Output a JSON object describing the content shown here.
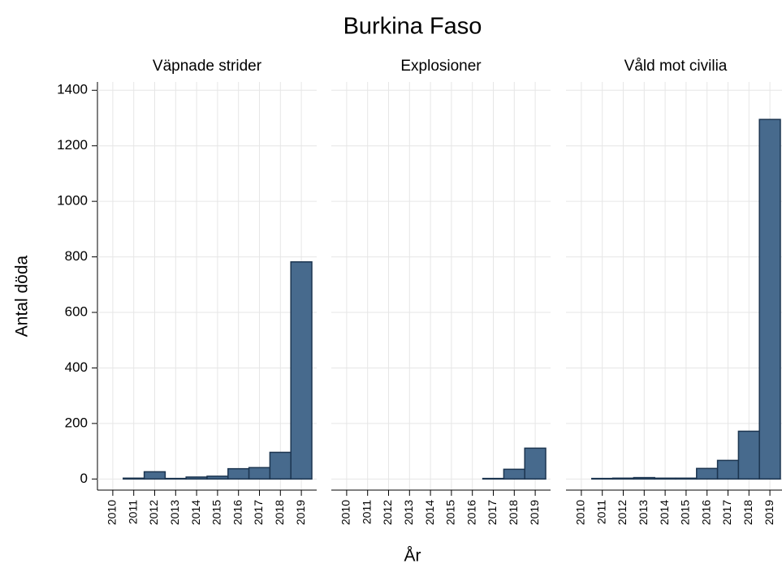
{
  "chart_data": {
    "type": "bar",
    "title": "Burkina Faso",
    "ylabel": "Antal döda",
    "xlabel": "År",
    "categories": [
      "2010",
      "2011",
      "2012",
      "2013",
      "2014",
      "2015",
      "2016",
      "2017",
      "2018",
      "2019"
    ],
    "color": "#476a8d",
    "edge_color": "#1c3550",
    "ylim": [
      -40,
      1430
    ],
    "yticks": [
      0,
      200,
      400,
      600,
      800,
      1000,
      1200,
      1400
    ],
    "grid": true,
    "panels": [
      {
        "title": "Väpnade strider",
        "values": [
          null,
          3,
          26,
          2,
          7,
          10,
          37,
          41,
          96,
          782
        ]
      },
      {
        "title": "Explosioner",
        "values": [
          null,
          null,
          null,
          null,
          null,
          null,
          null,
          2,
          35,
          111
        ]
      },
      {
        "title": "Våld mot civilia",
        "values": [
          null,
          2,
          3,
          5,
          3,
          3,
          38,
          67,
          172,
          1295
        ]
      }
    ]
  }
}
